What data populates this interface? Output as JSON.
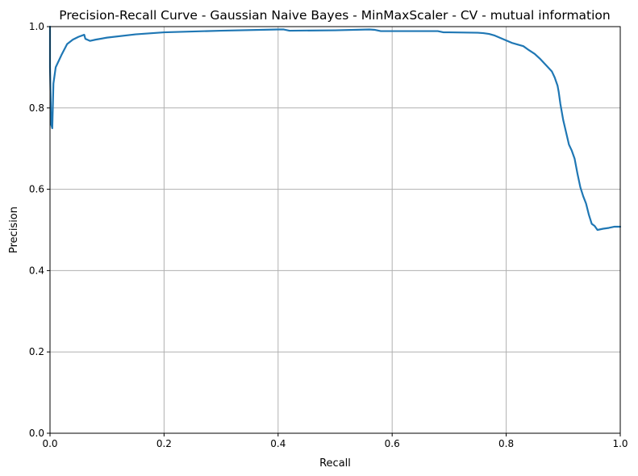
{
  "chart_data": {
    "type": "line",
    "title": "Precision-Recall Curve - Gaussian Naive Bayes - MinMaxScaler - CV - mutual information",
    "xlabel": "Recall",
    "ylabel": "Precision",
    "xlim": [
      0,
      1
    ],
    "ylim": [
      0,
      1
    ],
    "grid": true,
    "x_ticks": [
      0.0,
      0.2,
      0.4,
      0.6,
      0.8,
      1.0
    ],
    "y_ticks": [
      0.0,
      0.2,
      0.4,
      0.6,
      0.8,
      1.0
    ],
    "x_tick_labels": [
      "0.0",
      "0.2",
      "0.4",
      "0.6",
      "0.8",
      "1.0"
    ],
    "y_tick_labels": [
      "0.0",
      "0.2",
      "0.4",
      "0.6",
      "0.8",
      "1.0"
    ],
    "series": [
      {
        "color": "#1f77b4",
        "x": [
          0.0,
          0.0,
          0.002,
          0.004,
          0.006,
          0.01,
          0.02,
          0.03,
          0.04,
          0.05,
          0.06,
          0.062,
          0.07,
          0.08,
          0.1,
          0.15,
          0.2,
          0.3,
          0.4,
          0.41,
          0.42,
          0.5,
          0.56,
          0.57,
          0.58,
          0.6,
          0.65,
          0.68,
          0.69,
          0.7,
          0.75,
          0.76,
          0.77,
          0.78,
          0.79,
          0.8,
          0.81,
          0.82,
          0.83,
          0.84,
          0.85,
          0.86,
          0.87,
          0.88,
          0.885,
          0.89,
          0.892,
          0.895,
          0.9,
          0.905,
          0.91,
          0.915,
          0.92,
          0.925,
          0.93,
          0.935,
          0.94,
          0.945,
          0.95,
          0.955,
          0.96,
          0.97,
          0.98,
          0.99,
          1.0
        ],
        "y": [
          1.0,
          0.9,
          0.76,
          0.75,
          0.86,
          0.9,
          0.93,
          0.957,
          0.968,
          0.975,
          0.98,
          0.97,
          0.965,
          0.968,
          0.973,
          0.981,
          0.986,
          0.99,
          0.993,
          0.993,
          0.99,
          0.991,
          0.993,
          0.992,
          0.989,
          0.989,
          0.989,
          0.989,
          0.986,
          0.986,
          0.985,
          0.984,
          0.982,
          0.978,
          0.972,
          0.966,
          0.96,
          0.956,
          0.952,
          0.942,
          0.933,
          0.92,
          0.905,
          0.89,
          0.875,
          0.855,
          0.84,
          0.81,
          0.77,
          0.74,
          0.71,
          0.695,
          0.675,
          0.638,
          0.605,
          0.583,
          0.565,
          0.537,
          0.515,
          0.51,
          0.5,
          0.503,
          0.505,
          0.508,
          0.508
        ]
      }
    ]
  }
}
